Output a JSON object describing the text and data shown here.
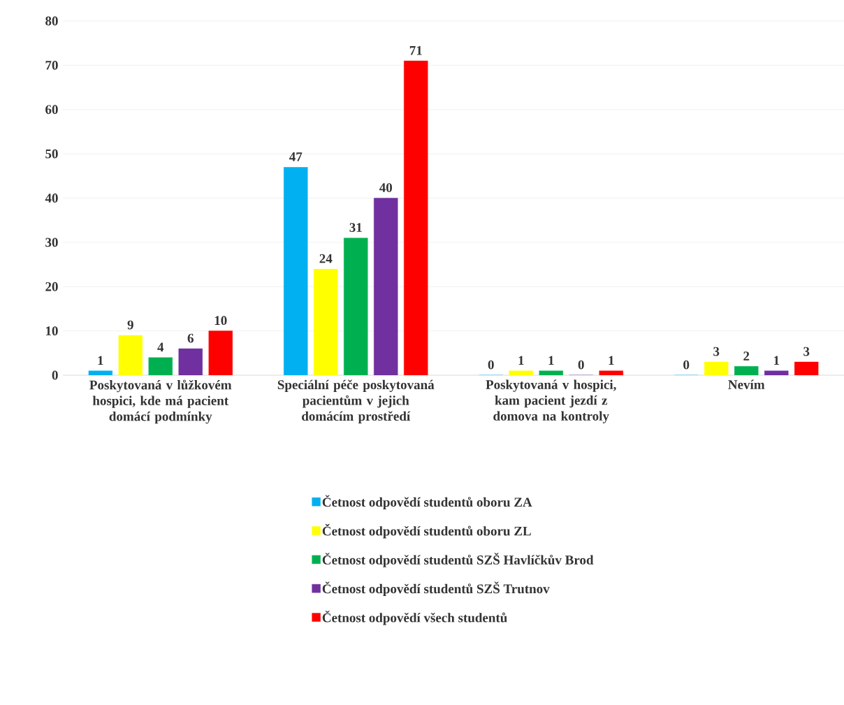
{
  "chart_data": {
    "type": "bar",
    "categories": [
      "Poskytovaná v lůžkovém hospici, kde má pacient domácí podmínky",
      "Speciální péče poskytovaná pacientům v jejich domácím prostředí",
      "Poskytovaná v hospici, kam pacient jezdí z domova na kontroly",
      "Nevím"
    ],
    "series": [
      {
        "name": "Četnost odpovědí studentů oboru ZA",
        "color": "#00b0f0",
        "values": [
          1,
          47,
          0,
          0
        ]
      },
      {
        "name": "Četnost odpovědí studentů oboru ZL",
        "color": "#ffff00",
        "values": [
          9,
          24,
          1,
          3
        ]
      },
      {
        "name": "Četnost odpovědí studentů SZŠ Havlíčkův Brod",
        "color": "#00b050",
        "values": [
          4,
          31,
          1,
          2
        ]
      },
      {
        "name": "Četnost odpovědí studentů SZŠ Trutnov",
        "color": "#7030a0",
        "values": [
          6,
          40,
          0,
          1
        ]
      },
      {
        "name": "Četnost odpovědí všech studentů",
        "color": "#ff0000",
        "values": [
          10,
          71,
          1,
          3
        ]
      }
    ],
    "ylim": [
      0,
      80
    ],
    "yticks": [
      0,
      10,
      20,
      30,
      40,
      50,
      60,
      70,
      80
    ],
    "grid": "y",
    "legend": "bottom",
    "data_labels": true
  }
}
